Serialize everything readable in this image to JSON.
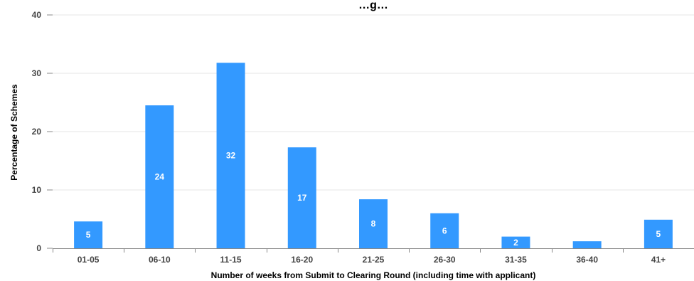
{
  "chart_data": {
    "type": "bar",
    "title": "…g…",
    "xlabel": "Number of weeks from Submit to Clearing Round (including time with applicant)",
    "ylabel": "Percentage of Schemes",
    "categories": [
      "01-05",
      "06-10",
      "11-15",
      "16-20",
      "21-25",
      "26-30",
      "31-35",
      "36-40",
      "41+"
    ],
    "values": [
      4.6,
      24.5,
      31.8,
      17.3,
      8.4,
      6.0,
      2.0,
      1.2,
      4.9
    ],
    "data_labels": [
      "5",
      "24",
      "32",
      "17",
      "8",
      "6",
      "2",
      "",
      "5"
    ],
    "y_ticks": [
      "0",
      "10",
      "20",
      "30",
      "40"
    ],
    "ylim": [
      0,
      40
    ],
    "grid": true,
    "legend": "none",
    "bar_color": "#3399ff"
  }
}
